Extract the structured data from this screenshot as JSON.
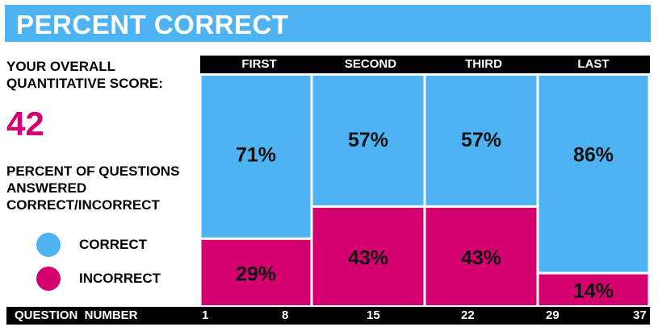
{
  "title": "PERCENT CORRECT",
  "score": {
    "label": "YOUR OVERALL QUANTITATIVE SCORE:",
    "value": "42"
  },
  "percent_label": "PERCENT OF QUESTIONS ANSWERED CORRECT/INCORRECT",
  "legend": [
    {
      "label": "CORRECT",
      "color": "#4db3f2"
    },
    {
      "label": "INCORRECT",
      "color": "#d4006f"
    }
  ],
  "chart_data": {
    "type": "bar",
    "stacked": true,
    "categories": [
      "FIRST",
      "SECOND",
      "THIRD",
      "LAST"
    ],
    "series": [
      {
        "name": "CORRECT",
        "values": [
          71,
          57,
          57,
          86
        ],
        "labels": [
          "71%",
          "57%",
          "57%",
          "86%"
        ],
        "color": "#4db3f2"
      },
      {
        "name": "INCORRECT",
        "values": [
          29,
          43,
          43,
          14
        ],
        "labels": [
          "29%",
          "43%",
          "43%",
          "14%"
        ],
        "color": "#d4006f"
      }
    ],
    "xlabel": "QUESTION  NUMBER",
    "x_ticks": [
      "1",
      "8",
      "15",
      "22",
      "29",
      "37"
    ],
    "ylim": [
      0,
      100
    ]
  }
}
